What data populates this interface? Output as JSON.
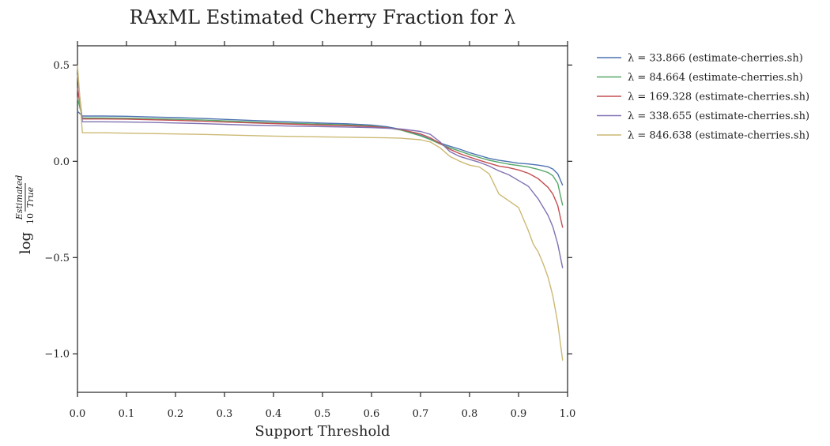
{
  "chart_data": {
    "type": "line",
    "title": "RAxML Estimated Cherry Fraction for λ",
    "xlabel": "Support Threshold",
    "ylabel": "log10 Estimated/True",
    "ylabel_parts": {
      "log": "log",
      "base": "10",
      "numerator": "Estimated",
      "denominator": "True"
    },
    "xlim": [
      0.0,
      1.0
    ],
    "ylim": [
      -1.2,
      0.6
    ],
    "x_ticks": [
      "0.0",
      "0.1",
      "0.2",
      "0.3",
      "0.4",
      "0.5",
      "0.6",
      "0.7",
      "0.8",
      "0.9",
      "1.0"
    ],
    "x_tick_values": [
      0.0,
      0.1,
      0.2,
      0.3,
      0.4,
      0.5,
      0.6,
      0.7,
      0.8,
      0.9,
      1.0
    ],
    "y_ticks": [
      "0.5",
      "0.0",
      "−0.5",
      "−1.0"
    ],
    "y_tick_values": [
      0.5,
      0.0,
      -0.5,
      -1.0
    ],
    "grid": false,
    "legend_position": "outside-right",
    "series": [
      {
        "name": "λ = 33.866 (estimate-cherries.sh)",
        "color": "#4C72B0",
        "points": [
          [
            0.0,
            0.26
          ],
          [
            0.01,
            0.235
          ],
          [
            0.05,
            0.235
          ],
          [
            0.1,
            0.234
          ],
          [
            0.15,
            0.23
          ],
          [
            0.2,
            0.227
          ],
          [
            0.25,
            0.223
          ],
          [
            0.3,
            0.218
          ],
          [
            0.35,
            0.213
          ],
          [
            0.4,
            0.208
          ],
          [
            0.45,
            0.203
          ],
          [
            0.5,
            0.198
          ],
          [
            0.55,
            0.195
          ],
          [
            0.6,
            0.188
          ],
          [
            0.63,
            0.18
          ],
          [
            0.66,
            0.166
          ],
          [
            0.7,
            0.135
          ],
          [
            0.72,
            0.115
          ],
          [
            0.74,
            0.095
          ],
          [
            0.76,
            0.078
          ],
          [
            0.78,
            0.063
          ],
          [
            0.8,
            0.045
          ],
          [
            0.82,
            0.03
          ],
          [
            0.84,
            0.015
          ],
          [
            0.86,
            0.005
          ],
          [
            0.88,
            -0.002
          ],
          [
            0.9,
            -0.01
          ],
          [
            0.92,
            -0.014
          ],
          [
            0.94,
            -0.02
          ],
          [
            0.96,
            -0.028
          ],
          [
            0.97,
            -0.04
          ],
          [
            0.98,
            -0.065
          ],
          [
            0.99,
            -0.125
          ]
        ]
      },
      {
        "name": "λ = 84.664 (estimate-cherries.sh)",
        "color": "#55A868",
        "points": [
          [
            0.0,
            0.33
          ],
          [
            0.01,
            0.225
          ],
          [
            0.05,
            0.225
          ],
          [
            0.1,
            0.224
          ],
          [
            0.15,
            0.221
          ],
          [
            0.2,
            0.218
          ],
          [
            0.25,
            0.215
          ],
          [
            0.3,
            0.21
          ],
          [
            0.35,
            0.205
          ],
          [
            0.4,
            0.2
          ],
          [
            0.45,
            0.196
          ],
          [
            0.5,
            0.192
          ],
          [
            0.55,
            0.189
          ],
          [
            0.6,
            0.183
          ],
          [
            0.63,
            0.175
          ],
          [
            0.66,
            0.162
          ],
          [
            0.7,
            0.132
          ],
          [
            0.72,
            0.113
          ],
          [
            0.74,
            0.09
          ],
          [
            0.76,
            0.07
          ],
          [
            0.78,
            0.053
          ],
          [
            0.8,
            0.035
          ],
          [
            0.82,
            0.02
          ],
          [
            0.84,
            0.005
          ],
          [
            0.86,
            -0.005
          ],
          [
            0.88,
            -0.015
          ],
          [
            0.9,
            -0.022
          ],
          [
            0.92,
            -0.03
          ],
          [
            0.94,
            -0.042
          ],
          [
            0.96,
            -0.058
          ],
          [
            0.97,
            -0.075
          ],
          [
            0.98,
            -0.115
          ],
          [
            0.99,
            -0.23
          ]
        ]
      },
      {
        "name": "λ = 169.328 (estimate-cherries.sh)",
        "color": "#C44E52",
        "points": [
          [
            0.0,
            0.38
          ],
          [
            0.01,
            0.22
          ],
          [
            0.05,
            0.22
          ],
          [
            0.1,
            0.219
          ],
          [
            0.15,
            0.216
          ],
          [
            0.2,
            0.213
          ],
          [
            0.25,
            0.209
          ],
          [
            0.3,
            0.204
          ],
          [
            0.35,
            0.2
          ],
          [
            0.4,
            0.196
          ],
          [
            0.45,
            0.192
          ],
          [
            0.5,
            0.188
          ],
          [
            0.55,
            0.185
          ],
          [
            0.6,
            0.18
          ],
          [
            0.63,
            0.174
          ],
          [
            0.66,
            0.165
          ],
          [
            0.7,
            0.142
          ],
          [
            0.72,
            0.122
          ],
          [
            0.74,
            0.092
          ],
          [
            0.76,
            0.062
          ],
          [
            0.78,
            0.04
          ],
          [
            0.8,
            0.022
          ],
          [
            0.82,
            0.005
          ],
          [
            0.84,
            -0.01
          ],
          [
            0.86,
            -0.025
          ],
          [
            0.88,
            -0.033
          ],
          [
            0.9,
            -0.045
          ],
          [
            0.92,
            -0.062
          ],
          [
            0.94,
            -0.09
          ],
          [
            0.96,
            -0.135
          ],
          [
            0.97,
            -0.17
          ],
          [
            0.98,
            -0.23
          ],
          [
            0.99,
            -0.345
          ]
        ]
      },
      {
        "name": "λ = 338.655 (estimate-cherries.sh)",
        "color": "#8172B2",
        "points": [
          [
            0.0,
            0.45
          ],
          [
            0.01,
            0.205
          ],
          [
            0.05,
            0.205
          ],
          [
            0.1,
            0.204
          ],
          [
            0.15,
            0.202
          ],
          [
            0.2,
            0.199
          ],
          [
            0.25,
            0.196
          ],
          [
            0.3,
            0.192
          ],
          [
            0.35,
            0.188
          ],
          [
            0.4,
            0.185
          ],
          [
            0.45,
            0.182
          ],
          [
            0.5,
            0.18
          ],
          [
            0.55,
            0.178
          ],
          [
            0.6,
            0.175
          ],
          [
            0.63,
            0.172
          ],
          [
            0.66,
            0.168
          ],
          [
            0.7,
            0.155
          ],
          [
            0.72,
            0.14
          ],
          [
            0.74,
            0.1
          ],
          [
            0.76,
            0.05
          ],
          [
            0.78,
            0.025
          ],
          [
            0.8,
            0.01
          ],
          [
            0.82,
            -0.005
          ],
          [
            0.84,
            -0.025
          ],
          [
            0.86,
            -0.05
          ],
          [
            0.88,
            -0.07
          ],
          [
            0.9,
            -0.1
          ],
          [
            0.92,
            -0.13
          ],
          [
            0.94,
            -0.195
          ],
          [
            0.96,
            -0.28
          ],
          [
            0.97,
            -0.34
          ],
          [
            0.98,
            -0.43
          ],
          [
            0.99,
            -0.555
          ]
        ]
      },
      {
        "name": "λ = 846.638 (estimate-cherries.sh)",
        "color": "#CCB974",
        "points": [
          [
            0.0,
            0.5
          ],
          [
            0.01,
            0.148
          ],
          [
            0.05,
            0.148
          ],
          [
            0.1,
            0.146
          ],
          [
            0.15,
            0.144
          ],
          [
            0.2,
            0.142
          ],
          [
            0.25,
            0.14
          ],
          [
            0.3,
            0.137
          ],
          [
            0.35,
            0.134
          ],
          [
            0.4,
            0.131
          ],
          [
            0.45,
            0.129
          ],
          [
            0.5,
            0.127
          ],
          [
            0.55,
            0.125
          ],
          [
            0.6,
            0.123
          ],
          [
            0.63,
            0.122
          ],
          [
            0.66,
            0.12
          ],
          [
            0.7,
            0.112
          ],
          [
            0.72,
            0.1
          ],
          [
            0.74,
            0.07
          ],
          [
            0.76,
            0.025
          ],
          [
            0.78,
            0.0
          ],
          [
            0.8,
            -0.02
          ],
          [
            0.82,
            -0.03
          ],
          [
            0.84,
            -0.065
          ],
          [
            0.86,
            -0.17
          ],
          [
            0.88,
            -0.205
          ],
          [
            0.9,
            -0.24
          ],
          [
            0.91,
            -0.3
          ],
          [
            0.92,
            -0.36
          ],
          [
            0.93,
            -0.43
          ],
          [
            0.94,
            -0.47
          ],
          [
            0.95,
            -0.53
          ],
          [
            0.96,
            -0.6
          ],
          [
            0.97,
            -0.7
          ],
          [
            0.98,
            -0.84
          ],
          [
            0.99,
            -1.035
          ]
        ]
      }
    ]
  }
}
